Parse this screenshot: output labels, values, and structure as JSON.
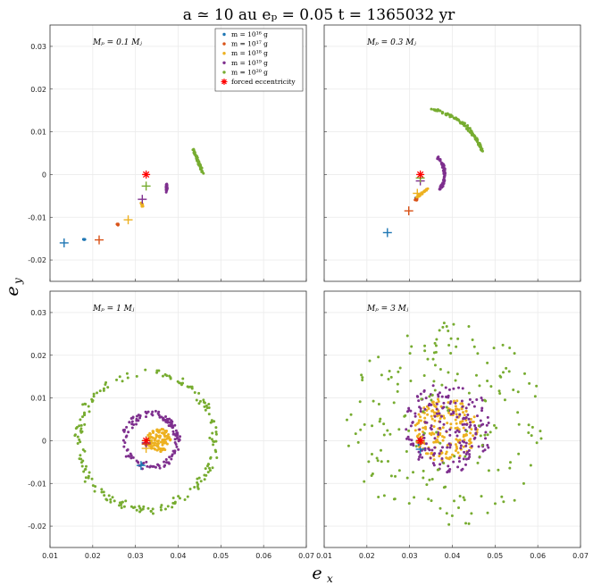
{
  "figure": {
    "title": "a ≃ 10 au    eₚ = 0.05    t = 1365032 yr",
    "xlabel": "e",
    "xlabel_sub": "x",
    "ylabel": "e",
    "ylabel_sub": "y"
  },
  "colors": {
    "m16": "#1f77b4",
    "m17": "#d95319",
    "m18": "#edb120",
    "m19": "#7e2f8e",
    "m20": "#77ac30",
    "forced": "#ff0000",
    "grid": "#ebebeb",
    "axis": "#333333"
  },
  "legend": {
    "entries": [
      {
        "key": "m16",
        "label": "m = 10¹⁶ g",
        "marker": "dot"
      },
      {
        "key": "m17",
        "label": "m = 10¹⁷ g",
        "marker": "dot"
      },
      {
        "key": "m18",
        "label": "m = 10¹⁸ g",
        "marker": "dot"
      },
      {
        "key": "m19",
        "label": "m = 10¹⁹ g",
        "marker": "dot"
      },
      {
        "key": "m20",
        "label": "m = 10²⁰ g",
        "marker": "dot"
      },
      {
        "key": "forced",
        "label": "forced eccentricity",
        "marker": "star"
      }
    ]
  },
  "chart_data": [
    {
      "type": "scatter",
      "title": "Mₚ = 0.1 Mⱼ",
      "xlim": [
        0.01,
        0.07
      ],
      "ylim": [
        -0.025,
        0.035
      ],
      "xticks": [
        "0.01",
        "0.02",
        "0.03",
        "0.04",
        "0.05",
        "0.06",
        "0.07"
      ],
      "yticks": [
        "-0.02",
        "-0.01",
        "0",
        "0.01",
        "0.02",
        "0.03"
      ],
      "forced": [
        0.0325,
        0.0
      ],
      "clouds": [
        {
          "key": "m16",
          "shape": "blob",
          "cx": 0.018,
          "cy": -0.0152,
          "rx": 0.0003,
          "ry": 0.0002,
          "n": 6
        },
        {
          "key": "m17",
          "shape": "blob",
          "cx": 0.0258,
          "cy": -0.0117,
          "rx": 0.0004,
          "ry": 0.0003,
          "n": 10
        },
        {
          "key": "m18",
          "shape": "arc",
          "cx": 0.0,
          "cy": 0.0,
          "r": 0.0,
          "cxs": 0.0315,
          "cys": -0.007,
          "rx": 0.0004,
          "ry": 0.0008,
          "n": 12
        },
        {
          "key": "m19",
          "shape": "blob",
          "cx": 0.0373,
          "cy": -0.003,
          "rx": 0.0003,
          "ry": 0.0015,
          "n": 40
        },
        {
          "key": "m20",
          "shape": "line",
          "x0": 0.0435,
          "y0": 0.0058,
          "x1": 0.0458,
          "y1": 0.0002,
          "w": 0.0004,
          "n": 60
        }
      ],
      "crosses": [
        {
          "key": "m16",
          "x": 0.0133,
          "y": -0.016
        },
        {
          "key": "m17",
          "x": 0.0215,
          "y": -0.0153
        },
        {
          "key": "m18",
          "x": 0.0283,
          "y": -0.0106
        },
        {
          "key": "m19",
          "x": 0.0316,
          "y": -0.0058
        },
        {
          "key": "m20",
          "x": 0.0325,
          "y": -0.0027
        }
      ]
    },
    {
      "type": "scatter",
      "title": "Mₚ = 0.3 Mⱼ",
      "xlim": [
        0.01,
        0.07
      ],
      "ylim": [
        -0.025,
        0.035
      ],
      "xticks": [
        "0.01",
        "0.02",
        "0.03",
        "0.04",
        "0.05",
        "0.06",
        "0.07"
      ],
      "yticks": [
        "-0.02",
        "-0.01",
        "0",
        "0.01",
        "0.02",
        "0.03"
      ],
      "forced": [
        0.0325,
        0.0
      ],
      "clouds": [
        {
          "key": "m16",
          "shape": "blob",
          "cx": 0.0315,
          "cy": -0.0055,
          "rx": 0.0002,
          "ry": 0.0002,
          "n": 4
        },
        {
          "key": "m17",
          "shape": "blob",
          "cx": 0.0315,
          "cy": -0.0058,
          "rx": 0.0004,
          "ry": 0.0004,
          "n": 12
        },
        {
          "key": "m18",
          "shape": "line",
          "x0": 0.0318,
          "y0": -0.0052,
          "x1": 0.0345,
          "y1": -0.0032,
          "w": 0.0005,
          "n": 30
        },
        {
          "key": "m19",
          "shape": "ring",
          "cx": 0.0325,
          "cy": 0.0,
          "r": 0.0057,
          "a0": -40,
          "a1": 45,
          "w": 0.0004,
          "n": 80
        },
        {
          "key": "m20",
          "shape": "ring",
          "cx": 0.0325,
          "cy": 0.0,
          "r": 0.0155,
          "a0": 20,
          "a1": 82,
          "w": 0.0005,
          "n": 110
        }
      ],
      "crosses": [
        {
          "key": "m16",
          "x": 0.0248,
          "y": -0.0136
        },
        {
          "key": "m17",
          "x": 0.0298,
          "y": -0.0085
        },
        {
          "key": "m18",
          "x": 0.0318,
          "y": -0.0044
        },
        {
          "key": "m19",
          "x": 0.0325,
          "y": -0.0015
        },
        {
          "key": "m20",
          "x": 0.0325,
          "y": -0.0008
        }
      ]
    },
    {
      "type": "scatter",
      "title": "Mₚ = 1 Mⱼ",
      "xlim": [
        0.01,
        0.07
      ],
      "ylim": [
        -0.025,
        0.035
      ],
      "xticks": [
        "0.01",
        "0.02",
        "0.03",
        "0.04",
        "0.05",
        "0.06",
        "0.07"
      ],
      "yticks": [
        "-0.02",
        "-0.01",
        "0",
        "0.01",
        "0.02",
        "0.03"
      ],
      "forced": [
        0.0325,
        0.0
      ],
      "clouds": [
        {
          "key": "m16",
          "shape": "blob",
          "cx": 0.0315,
          "cy": -0.0055,
          "rx": 0.0003,
          "ry": 0.0003,
          "n": 5
        },
        {
          "key": "m17",
          "shape": "blob",
          "cx": 0.0325,
          "cy": -0.0008,
          "rx": 0.0004,
          "ry": 0.0004,
          "n": 8
        },
        {
          "key": "m18",
          "shape": "disk",
          "cx": 0.0355,
          "cy": 0.0002,
          "r": 0.0028,
          "n": 110
        },
        {
          "key": "m19",
          "shape": "ring",
          "cx": 0.0335,
          "cy": 0.0,
          "r": 0.0062,
          "a0": 0,
          "a1": 360,
          "w": 0.0013,
          "n": 130
        },
        {
          "key": "m20",
          "shape": "ring",
          "cx": 0.0325,
          "cy": 0.0,
          "r": 0.016,
          "a0": 0,
          "a1": 360,
          "w": 0.0016,
          "n": 190
        }
      ],
      "crosses": [
        {
          "key": "m16",
          "x": 0.0313,
          "y": -0.0058
        },
        {
          "key": "m17",
          "x": 0.0325,
          "y": -0.0008
        },
        {
          "key": "m18",
          "x": 0.0325,
          "y": -0.0018
        },
        {
          "key": "m19",
          "x": 0.0325,
          "y": -0.0005
        },
        {
          "key": "m20",
          "x": 0.0325,
          "y": 0.0
        }
      ]
    },
    {
      "type": "scatter",
      "title": "Mₚ = 3 Mⱼ",
      "xlim": [
        0.01,
        0.07
      ],
      "ylim": [
        -0.025,
        0.035
      ],
      "xticks": [
        "0.01",
        "0.02",
        "0.03",
        "0.04",
        "0.05",
        "0.06",
        "0.07"
      ],
      "yticks": [
        "-0.02",
        "-0.01",
        "0",
        "0.01",
        "0.02",
        "0.03"
      ],
      "forced": [
        0.0325,
        0.0
      ],
      "clouds": [
        {
          "key": "m16",
          "shape": "blob",
          "cx": 0.0322,
          "cy": -0.001,
          "rx": 0.0003,
          "ry": 0.0003,
          "n": 4
        },
        {
          "key": "m17",
          "shape": "blob",
          "cx": 0.0325,
          "cy": -0.0006,
          "rx": 0.0003,
          "ry": 0.0003,
          "n": 6
        },
        {
          "key": "m18",
          "shape": "disk",
          "cx": 0.0385,
          "cy": 0.0025,
          "r": 0.0075,
          "n": 190
        },
        {
          "key": "m19",
          "shape": "disk",
          "cx": 0.039,
          "cy": 0.003,
          "r": 0.0105,
          "n": 200
        },
        {
          "key": "m20",
          "shape": "disk",
          "cx": 0.039,
          "cy": 0.004,
          "r": 0.024,
          "n": 190
        }
      ],
      "crosses": [
        {
          "key": "m16",
          "x": 0.0325,
          "y": -0.002
        },
        {
          "key": "m17",
          "x": 0.0325,
          "y": -0.0005
        },
        {
          "key": "m18",
          "x": 0.0325,
          "y": -0.0003
        },
        {
          "key": "m19",
          "x": 0.0325,
          "y": 0.0
        },
        {
          "key": "m20",
          "x": 0.0325,
          "y": 0.0
        }
      ]
    }
  ]
}
